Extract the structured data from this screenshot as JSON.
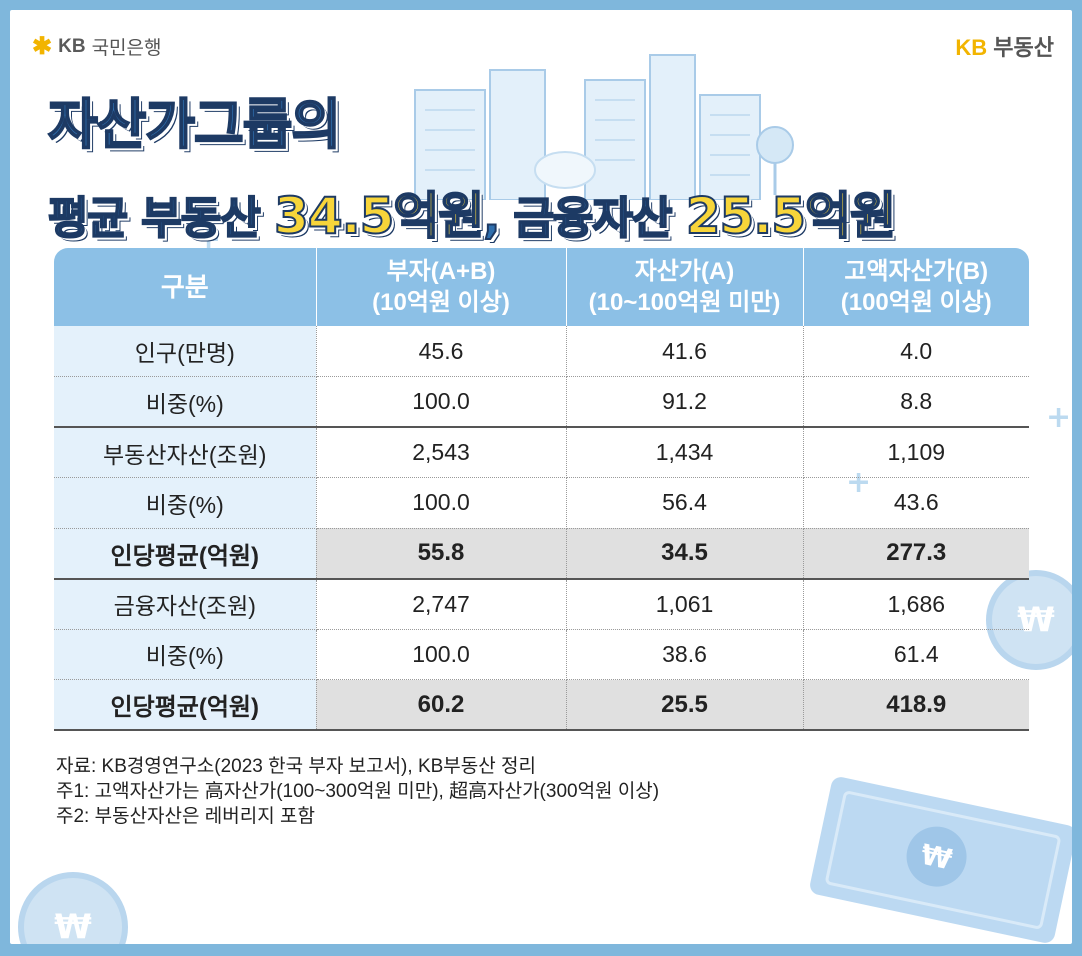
{
  "logos": {
    "left_brand": "KB",
    "left_name": "국민은행",
    "right_brand": "KB",
    "right_name": "부동산"
  },
  "title": {
    "line1": "자산가그룹의",
    "line2_a": "평균 부동산 ",
    "line2_b": "34.5억원",
    "line2_c": ", 금융자산 ",
    "line2_d": "25.5억원"
  },
  "table": {
    "headers": [
      {
        "line1": "구분",
        "line2": ""
      },
      {
        "line1": "부자(A+B)",
        "line2": "(10억원 이상)"
      },
      {
        "line1": "자산가(A)",
        "line2": "(10~100억원 미만)"
      },
      {
        "line1": "고액자산가(B)",
        "line2": "(100억원 이상)"
      }
    ],
    "rows": [
      {
        "label": "인구(만명)",
        "values": [
          "45.6",
          "41.6",
          "4.0"
        ]
      },
      {
        "label": "비중(%)",
        "values": [
          "100.0",
          "91.2",
          "8.8"
        ]
      },
      {
        "label": "부동산자산(조원)",
        "values": [
          "2,543",
          "1,434",
          "1,109"
        ]
      },
      {
        "label": "비중(%)",
        "values": [
          "100.0",
          "56.4",
          "43.6"
        ]
      },
      {
        "label": "인당평균(억원)",
        "values": [
          "55.8",
          "34.5",
          "277.3"
        ]
      },
      {
        "label": "금융자산(조원)",
        "values": [
          "2,747",
          "1,061",
          "1,686"
        ]
      },
      {
        "label": "비중(%)",
        "values": [
          "100.0",
          "38.6",
          "61.4"
        ]
      },
      {
        "label": "인당평균(억원)",
        "values": [
          "60.2",
          "25.5",
          "418.9"
        ]
      }
    ]
  },
  "notes": {
    "source": "자료: KB경영연구소(2023 한국 부자 보고서), KB부동산 정리",
    "note1": "주1: 고액자산가는 高자산가(100~300억원 미만), 超高자산가(300억원 이상)",
    "note2": "주2: 부동산자산은 레버리지 포함"
  },
  "colors": {
    "frame": "#7fb7dc",
    "header": "#8cc0e6",
    "label_bg": "#e4f1fb",
    "highlight": "#f7d53a",
    "title": "#2f6fae"
  }
}
